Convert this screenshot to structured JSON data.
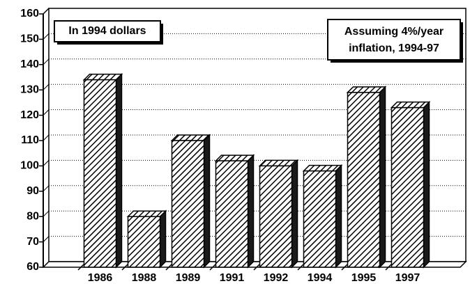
{
  "chart_data": {
    "type": "bar",
    "categories": [
      "1986",
      "1988",
      "1989",
      "1991",
      "1992",
      "1994",
      "1995",
      "1997"
    ],
    "values": [
      134,
      80,
      110,
      102,
      100,
      98,
      129,
      123
    ],
    "color": "#000000",
    "ylim": [
      60,
      160
    ],
    "yticks": [
      60,
      70,
      80,
      90,
      100,
      110,
      120,
      130,
      140,
      150,
      160
    ],
    "grid": true,
    "annotations": [
      {
        "text": "In 1994 dollars"
      },
      {
        "lines": [
          "Assuming 4%/year",
          "inflation, 1994-97"
        ]
      }
    ]
  }
}
